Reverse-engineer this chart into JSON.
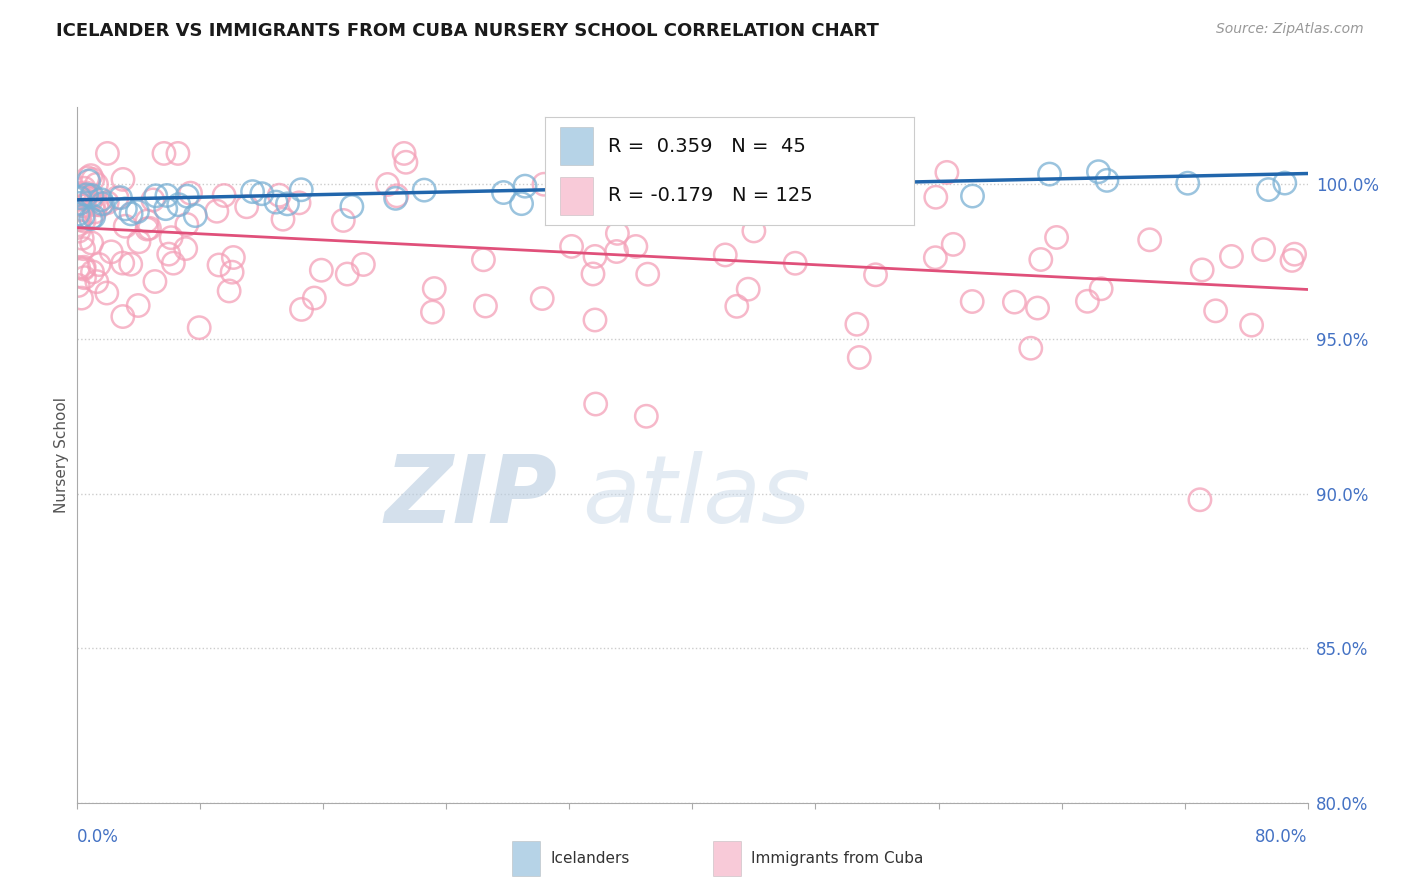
{
  "title": "ICELANDER VS IMMIGRANTS FROM CUBA NURSERY SCHOOL CORRELATION CHART",
  "source": "Source: ZipAtlas.com",
  "ylabel": "Nursery School",
  "xlim": [
    0.0,
    80.0
  ],
  "ylim": [
    80.0,
    102.5
  ],
  "yticks": [
    80.0,
    85.0,
    90.0,
    95.0,
    100.0
  ],
  "ytick_labels": [
    "80.0%",
    "85.0%",
    "90.0%",
    "95.0%",
    "100.0%"
  ],
  "blue_N": 45,
  "pink_N": 125,
  "blue_color": "#7ab0d4",
  "pink_color": "#f4a0b8",
  "blue_line_color": "#2166ac",
  "pink_line_color": "#e0507a",
  "watermark_zip": "ZIP",
  "watermark_atlas": "atlas",
  "background_color": "#ffffff",
  "grid_color": "#cccccc",
  "title_color": "#1a1a1a",
  "axis_label_color": "#4472c4",
  "blue_trend": [
    0,
    80,
    99.5,
    100.35
  ],
  "pink_trend": [
    0,
    80,
    98.6,
    96.6
  ]
}
